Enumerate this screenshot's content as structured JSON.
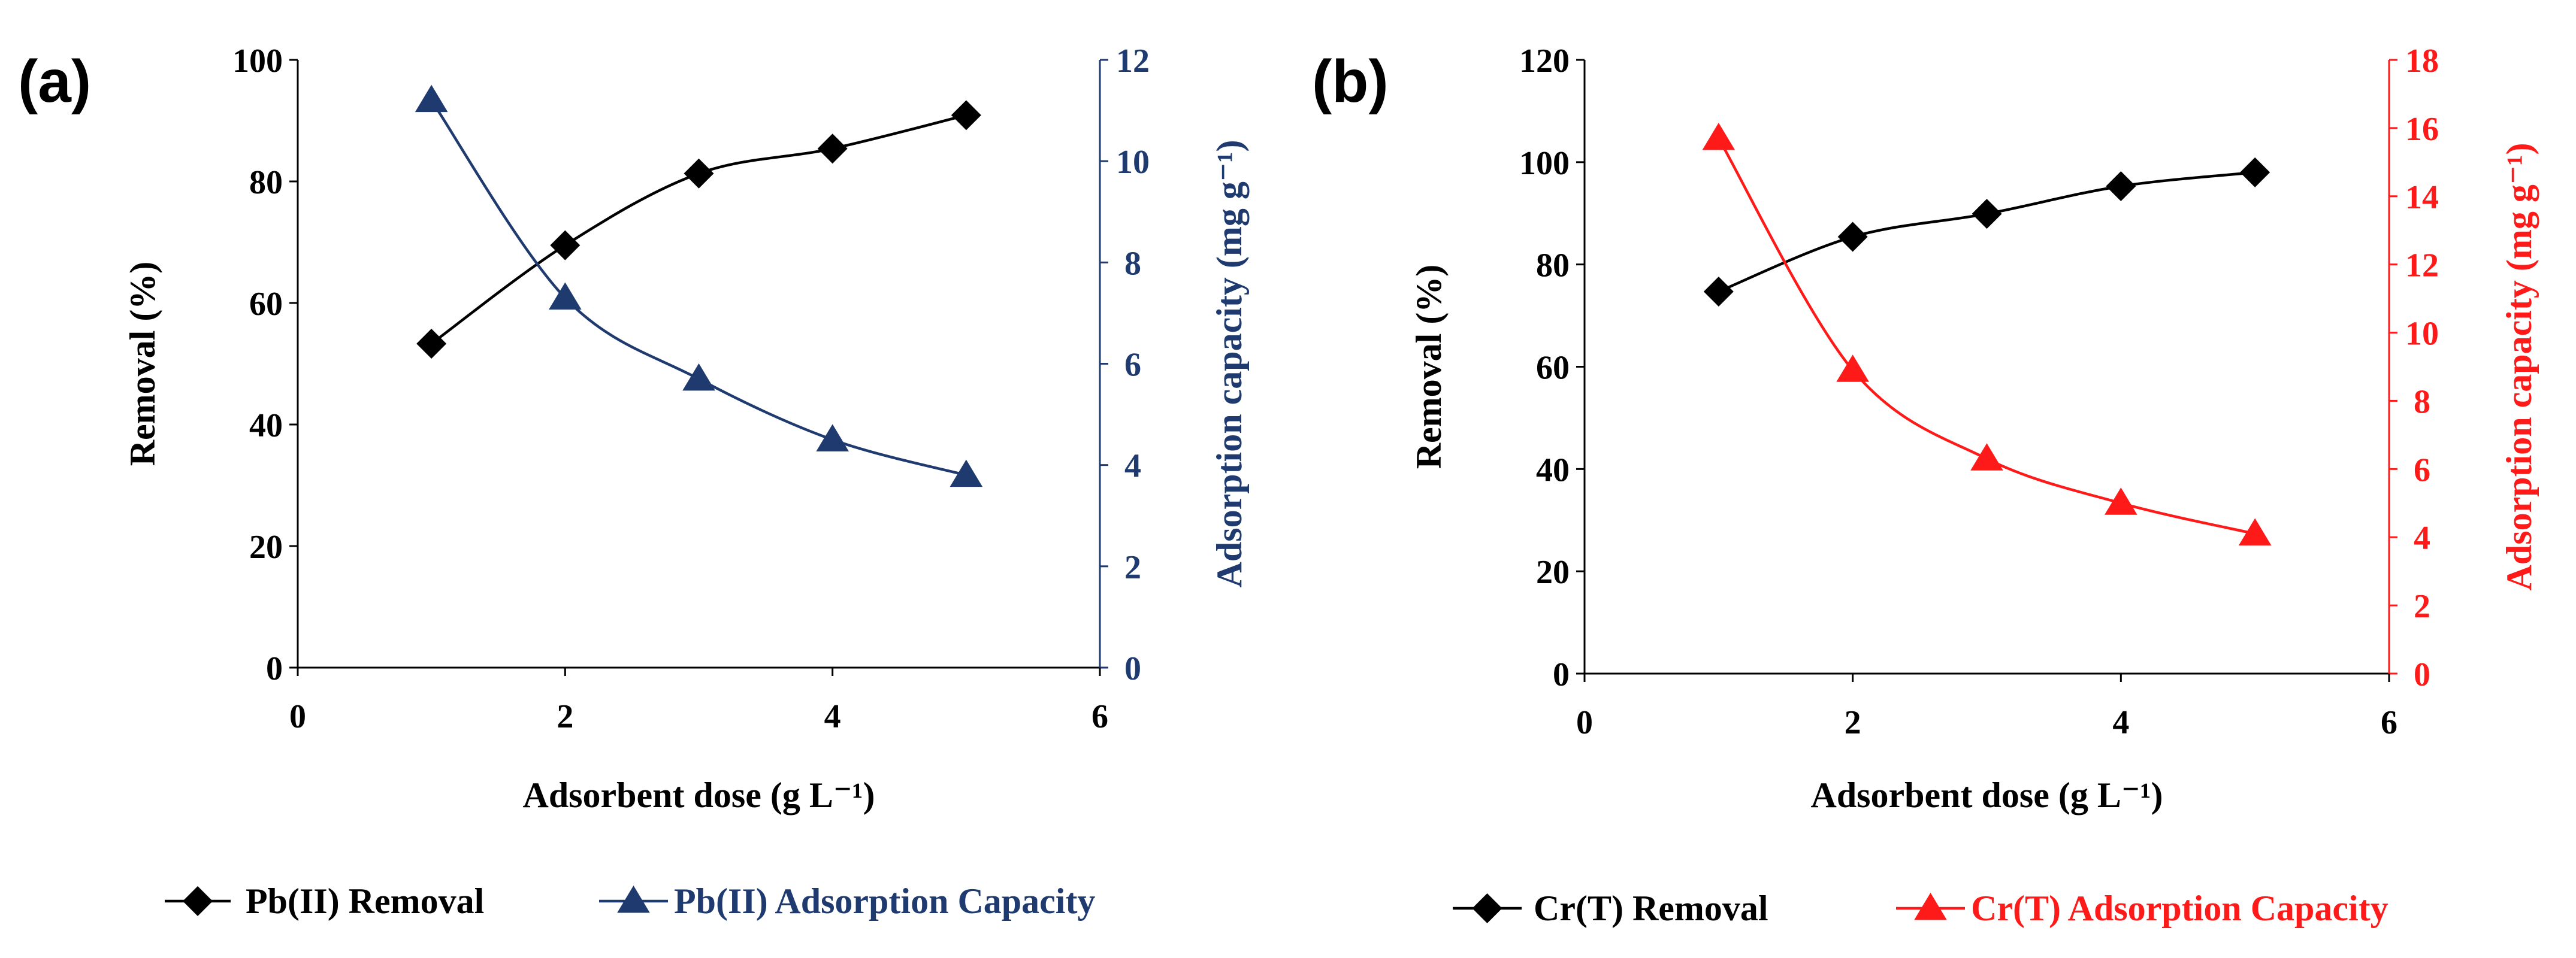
{
  "chart_data": [
    {
      "panel_label": "(a)",
      "type": "line",
      "xlabel": "Adsorbent dose (g L⁻¹)",
      "ylabel": "Removal (%)",
      "y2label": "Adsorption capacity (mg g⁻¹)",
      "xlim": [
        0,
        6
      ],
      "ylim": [
        0,
        100
      ],
      "y2lim": [
        0,
        12
      ],
      "xticks": [
        "0",
        "2",
        "4",
        "6"
      ],
      "yticks": [
        "0",
        "20",
        "40",
        "60",
        "80",
        "100"
      ],
      "y2ticks": [
        "0",
        "2",
        "4",
        "6",
        "8",
        "10",
        "12"
      ],
      "grid": false,
      "legend_position": "bottom",
      "series": [
        {
          "name": "Pb(II) Removal",
          "axis": "left",
          "marker": "diamond",
          "color": "#000000",
          "x": [
            1,
            2,
            3,
            4,
            5
          ],
          "y": [
            53.3,
            69.5,
            81.3,
            85.4,
            90.9
          ]
        },
        {
          "name": "Pb(II) Adsorption Capacity",
          "axis": "right",
          "marker": "triangle",
          "color": "#1f3a6e",
          "x": [
            1,
            2,
            3,
            4,
            5
          ],
          "y": [
            11.2,
            7.3,
            5.7,
            4.5,
            3.8
          ]
        }
      ]
    },
    {
      "panel_label": "(b)",
      "type": "line",
      "xlabel": "Adsorbent dose (g L⁻¹)",
      "ylabel": "Removal (%)",
      "y2label": "Adsorption capacity (mg g⁻¹)",
      "xlim": [
        0,
        6
      ],
      "ylim": [
        0,
        120
      ],
      "y2lim": [
        0,
        18
      ],
      "xticks": [
        "0",
        "2",
        "4",
        "6"
      ],
      "yticks": [
        "0",
        "20",
        "40",
        "60",
        "80",
        "100",
        "120"
      ],
      "y2ticks": [
        "0",
        "2",
        "4",
        "6",
        "8",
        "10",
        "12",
        "14",
        "16",
        "18"
      ],
      "grid": false,
      "legend_position": "bottom",
      "series": [
        {
          "name": "Cr(T) Removal",
          "axis": "left",
          "marker": "diamond",
          "color": "#000000",
          "x": [
            1,
            2,
            3,
            4,
            5
          ],
          "y": [
            74.7,
            85.4,
            89.9,
            95.3,
            98.0
          ]
        },
        {
          "name": "Cr(T) Adsorption Capacity",
          "axis": "right",
          "marker": "triangle",
          "color": "#ff1a1a",
          "x": [
            1,
            2,
            3,
            4,
            5
          ],
          "y": [
            15.7,
            8.9,
            6.3,
            5.0,
            4.1
          ]
        }
      ]
    }
  ]
}
